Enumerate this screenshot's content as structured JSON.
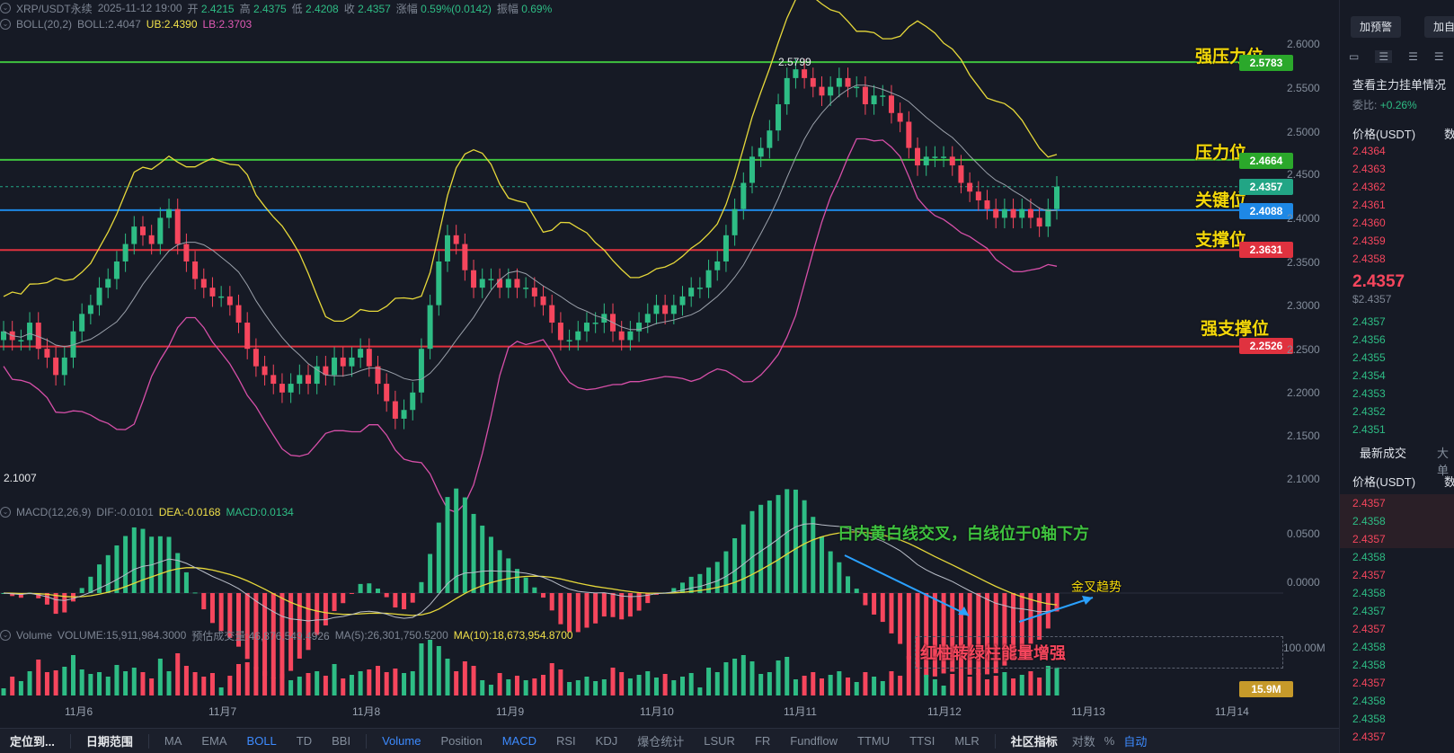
{
  "header": {
    "symbol": "XRP/USDT永续",
    "datetime": "2025-11-12 19:00",
    "open_label": "开",
    "open": "2.4215",
    "high_label": "高",
    "high": "2.4375",
    "low_label": "低",
    "low": "2.4208",
    "close_label": "收",
    "close": "2.4357",
    "change_label": "涨幅",
    "change": "0.59%(0.0142)",
    "amplitude_label": "振幅",
    "amplitude": "0.69%"
  },
  "boll": {
    "name": "BOLL(20,2)",
    "boll": "BOLL:2.4047",
    "ub": "UB:2.4390",
    "lb": "LB:2.3703"
  },
  "macd": {
    "name": "MACD(12,26,9)",
    "dif": "DIF:-0.0101",
    "dea": "DEA:-0.0168",
    "macd": "MACD:0.0134"
  },
  "volume": {
    "name": "Volume",
    "volume": "VOLUME:15,911,984.3000",
    "estimate": "预估成交量:46,876,549.4926",
    "ma5": "MA(5):26,301,750.5200",
    "ma10": "MA(10):18,673,954.8700",
    "axis_100m": "100.00M",
    "tag": "15.9M"
  },
  "levels": {
    "strong_resistance": {
      "label": "强压力位",
      "price": "2.5783"
    },
    "resistance": {
      "label": "压力位",
      "price": "2.4664"
    },
    "current": {
      "price": "2.4357"
    },
    "key": {
      "label": "关键位",
      "price": "2.4088"
    },
    "support": {
      "label": "支撑位",
      "price": "2.3631"
    },
    "strong_support": {
      "label": "强支撑位",
      "price": "2.2526"
    }
  },
  "colors": {
    "up": "#2ebd85",
    "down": "#f6465d",
    "accent": "#3d8bff",
    "level_text": "#f5d90a"
  },
  "annotations": {
    "high_marker": "2.5799",
    "low_marker": "2.1007",
    "macd_note": "日内黄白线交叉，白线位于0轴下方",
    "golden_cross": "金叉趋势",
    "volume_note": "红柱转绿柱能量增强"
  },
  "price_axis": [
    "2.6000",
    "2.5500",
    "2.5000",
    "2.4500",
    "2.4000",
    "2.3500",
    "2.3000",
    "2.2500",
    "2.2000",
    "2.1500",
    "2.1000"
  ],
  "macd_axis": [
    "0.0500",
    "0.0000"
  ],
  "date_axis": [
    "11月6",
    "11月7",
    "11月8",
    "11月9",
    "11月10",
    "11月11",
    "11月12",
    "11月13",
    "11月14"
  ],
  "chart_data": {
    "type": "candlestick",
    "interval": "1h",
    "ylim": [
      2.1,
      2.6
    ],
    "horizontal_levels": [
      2.5783,
      2.4664,
      2.4088,
      2.3631,
      2.2526
    ],
    "last_close": 2.4357,
    "closes": [
      2.27,
      2.26,
      2.26,
      2.28,
      2.25,
      2.24,
      2.22,
      2.24,
      2.27,
      2.29,
      2.3,
      2.32,
      2.33,
      2.35,
      2.37,
      2.39,
      2.38,
      2.37,
      2.4,
      2.41,
      2.37,
      2.35,
      2.33,
      2.32,
      2.31,
      2.31,
      2.3,
      2.28,
      2.25,
      2.23,
      2.22,
      2.21,
      2.2,
      2.21,
      2.22,
      2.21,
      2.23,
      2.22,
      2.24,
      2.23,
      2.24,
      2.25,
      2.23,
      2.21,
      2.19,
      2.17,
      2.18,
      2.2,
      2.25,
      2.3,
      2.35,
      2.38,
      2.37,
      2.34,
      2.32,
      2.33,
      2.33,
      2.32,
      2.33,
      2.32,
      2.32,
      2.31,
      2.3,
      2.28,
      2.26,
      2.26,
      2.27,
      2.28,
      2.28,
      2.29,
      2.27,
      2.26,
      2.27,
      2.28,
      2.29,
      2.3,
      2.29,
      2.3,
      2.31,
      2.32,
      2.32,
      2.34,
      2.35,
      2.38,
      2.41,
      2.44,
      2.47,
      2.48,
      2.5,
      2.53,
      2.56,
      2.57,
      2.56,
      2.55,
      2.54,
      2.55,
      2.56,
      2.55,
      2.55,
      2.53,
      2.54,
      2.54,
      2.52,
      2.51,
      2.48,
      2.46,
      2.47,
      2.47,
      2.47,
      2.46,
      2.44,
      2.43,
      2.42,
      2.41,
      2.4,
      2.41,
      2.4,
      2.41,
      2.4,
      2.39,
      2.41,
      2.4357
    ],
    "macd_hist_range": [
      -0.02,
      0.03
    ],
    "volume_last": "15.9M"
  }
}
